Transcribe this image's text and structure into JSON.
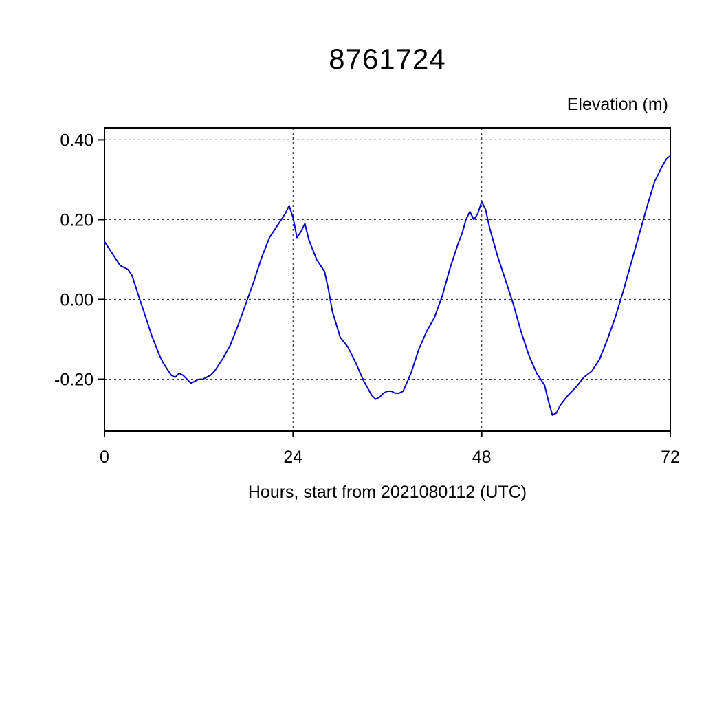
{
  "chart_data": {
    "type": "line",
    "title": "8761724",
    "ylabel": "Elevation (m)",
    "xlabel": "Hours, start from 2021080112 (UTC)",
    "xlim": [
      0,
      72
    ],
    "ylim": [
      -0.33,
      0.43
    ],
    "xticks": [
      0,
      24,
      48,
      72
    ],
    "xtick_labels": [
      "0",
      "24",
      "48",
      "72"
    ],
    "x_gridlines": [
      24,
      48
    ],
    "yticks": [
      -0.2,
      0.0,
      0.2,
      0.4
    ],
    "ytick_labels": [
      "-0.20",
      "0.00",
      "0.20",
      "0.40"
    ],
    "grid_style": "dashed",
    "legend": "none",
    "line_color": "#0000c8",
    "series": [
      {
        "name": "elevation",
        "points": [
          [
            0,
            0.145
          ],
          [
            0.5,
            0.13
          ],
          [
            1,
            0.115
          ],
          [
            1.5,
            0.1
          ],
          [
            2,
            0.085
          ],
          [
            2.5,
            0.08
          ],
          [
            3,
            0.075
          ],
          [
            3.5,
            0.06
          ],
          [
            4,
            0.03
          ],
          [
            4.5,
            0.0
          ],
          [
            5,
            -0.03
          ],
          [
            5.5,
            -0.06
          ],
          [
            6,
            -0.09
          ],
          [
            6.5,
            -0.115
          ],
          [
            7,
            -0.14
          ],
          [
            7.5,
            -0.16
          ],
          [
            8,
            -0.175
          ],
          [
            8.5,
            -0.19
          ],
          [
            9,
            -0.195
          ],
          [
            9.5,
            -0.185
          ],
          [
            10,
            -0.19
          ],
          [
            10.5,
            -0.2
          ],
          [
            11,
            -0.21
          ],
          [
            11.5,
            -0.205
          ],
          [
            12,
            -0.2
          ],
          [
            12.5,
            -0.2
          ],
          [
            13,
            -0.195
          ],
          [
            13.5,
            -0.19
          ],
          [
            14,
            -0.18
          ],
          [
            15,
            -0.15
          ],
          [
            16,
            -0.115
          ],
          [
            17,
            -0.065
          ],
          [
            18,
            -0.01
          ],
          [
            19,
            0.045
          ],
          [
            20,
            0.105
          ],
          [
            21,
            0.155
          ],
          [
            22,
            0.185
          ],
          [
            22.5,
            0.2
          ],
          [
            23,
            0.215
          ],
          [
            23.5,
            0.235
          ],
          [
            24,
            0.205
          ],
          [
            24.5,
            0.155
          ],
          [
            25,
            0.17
          ],
          [
            25.5,
            0.19
          ],
          [
            26,
            0.15
          ],
          [
            27,
            0.1
          ],
          [
            28,
            0.07
          ],
          [
            28.5,
            0.025
          ],
          [
            29,
            -0.03
          ],
          [
            30,
            -0.095
          ],
          [
            31,
            -0.12
          ],
          [
            32,
            -0.16
          ],
          [
            33,
            -0.205
          ],
          [
            34,
            -0.24
          ],
          [
            34.5,
            -0.25
          ],
          [
            35,
            -0.245
          ],
          [
            35.5,
            -0.235
          ],
          [
            36,
            -0.23
          ],
          [
            36.5,
            -0.23
          ],
          [
            37,
            -0.235
          ],
          [
            37.5,
            -0.235
          ],
          [
            38,
            -0.23
          ],
          [
            39,
            -0.185
          ],
          [
            40,
            -0.125
          ],
          [
            41,
            -0.08
          ],
          [
            42,
            -0.045
          ],
          [
            43,
            0.01
          ],
          [
            44,
            0.08
          ],
          [
            45,
            0.14
          ],
          [
            45.5,
            0.165
          ],
          [
            46,
            0.2
          ],
          [
            46.5,
            0.22
          ],
          [
            47,
            0.2
          ],
          [
            47.5,
            0.215
          ],
          [
            48,
            0.245
          ],
          [
            48.5,
            0.225
          ],
          [
            49,
            0.18
          ],
          [
            50,
            0.11
          ],
          [
            51,
            0.05
          ],
          [
            52,
            -0.01
          ],
          [
            53,
            -0.08
          ],
          [
            54,
            -0.14
          ],
          [
            55,
            -0.185
          ],
          [
            55.5,
            -0.2
          ],
          [
            56,
            -0.215
          ],
          [
            56.5,
            -0.255
          ],
          [
            57,
            -0.29
          ],
          [
            57.5,
            -0.285
          ],
          [
            58,
            -0.265
          ],
          [
            59,
            -0.24
          ],
          [
            60,
            -0.22
          ],
          [
            61,
            -0.195
          ],
          [
            62,
            -0.18
          ],
          [
            63,
            -0.15
          ],
          [
            64,
            -0.1
          ],
          [
            65,
            -0.045
          ],
          [
            66,
            0.02
          ],
          [
            67,
            0.09
          ],
          [
            68,
            0.16
          ],
          [
            69,
            0.23
          ],
          [
            70,
            0.295
          ],
          [
            71,
            0.335
          ],
          [
            71.5,
            0.352
          ],
          [
            72,
            0.36
          ]
        ]
      }
    ]
  }
}
